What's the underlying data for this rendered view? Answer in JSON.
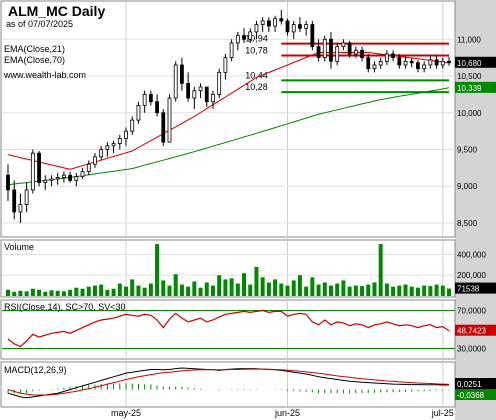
{
  "chart_data": {
    "type": "candlestick",
    "title": "ALM_MC Daily",
    "subtitle": "as of 07/07/2025",
    "watermark": "www.wealth-lab.com",
    "x_labels": [
      "may-25",
      "jun-25",
      "jul-25"
    ],
    "x_label_bar_index": [
      19,
      45,
      70
    ],
    "price": {
      "ylim": [
        8350,
        11480
      ],
      "ticks": [
        "11,000",
        "10,500",
        "10,000",
        "9,500",
        "9,000",
        "8,500"
      ],
      "tick_values": [
        11000,
        10500,
        10000,
        9500,
        9000,
        8500
      ],
      "legend": [
        "EMA(Close,21)",
        "EMA(Close,70)"
      ],
      "candles": [
        [
          9150,
          9300,
          8800,
          8950
        ],
        [
          8950,
          9080,
          8550,
          8650
        ],
        [
          8650,
          8900,
          8500,
          8750
        ],
        [
          8750,
          9050,
          8650,
          8950
        ],
        [
          8950,
          9500,
          8900,
          9450
        ],
        [
          9450,
          9480,
          9000,
          9050
        ],
        [
          9050,
          9150,
          8950,
          9080
        ],
        [
          9080,
          9150,
          9000,
          9100
        ],
        [
          9100,
          9180,
          9020,
          9120
        ],
        [
          9120,
          9200,
          9050,
          9150
        ],
        [
          9150,
          9200,
          9050,
          9080
        ],
        [
          9080,
          9180,
          9000,
          9130
        ],
        [
          9130,
          9250,
          9100,
          9200
        ],
        [
          9200,
          9350,
          9150,
          9300
        ],
        [
          9300,
          9450,
          9250,
          9400
        ],
        [
          9400,
          9550,
          9350,
          9500
        ],
        [
          9500,
          9600,
          9400,
          9550
        ],
        [
          9550,
          9620,
          9450,
          9580
        ],
        [
          9580,
          9700,
          9500,
          9650
        ],
        [
          9650,
          9800,
          9550,
          9750
        ],
        [
          9750,
          9950,
          9700,
          9900
        ],
        [
          9900,
          10150,
          9850,
          10100
        ],
        [
          10100,
          10300,
          10000,
          10250
        ],
        [
          10250,
          10300,
          10100,
          10150
        ],
        [
          10150,
          10250,
          9950,
          10000
        ],
        [
          10000,
          10050,
          9550,
          9600
        ],
        [
          9600,
          10250,
          9600,
          10200
        ],
        [
          10200,
          10700,
          10150,
          10650
        ],
        [
          10650,
          10750,
          10300,
          10400
        ],
        [
          10400,
          10550,
          10150,
          10200
        ],
        [
          10200,
          10350,
          10050,
          10300
        ],
        [
          10300,
          10400,
          10200,
          10350
        ],
        [
          10350,
          10350,
          10080,
          10150
        ],
        [
          10150,
          10300,
          10050,
          10250
        ],
        [
          10250,
          10600,
          10200,
          10550
        ],
        [
          10550,
          10800,
          10450,
          10750
        ],
        [
          10750,
          11000,
          10700,
          10950
        ],
        [
          10950,
          11100,
          10850,
          11050
        ],
        [
          11050,
          11150,
          10950,
          11000
        ],
        [
          11000,
          11150,
          10950,
          11100
        ],
        [
          11100,
          11250,
          11000,
          11200
        ],
        [
          11200,
          11300,
          11100,
          11250
        ],
        [
          11250,
          11300,
          11100,
          11180
        ],
        [
          11180,
          11320,
          11100,
          11280
        ],
        [
          11280,
          11400,
          11200,
          11250
        ],
        [
          11250,
          11280,
          11050,
          11100
        ],
        [
          11100,
          11250,
          11000,
          11200
        ],
        [
          11200,
          11300,
          11100,
          11150
        ],
        [
          11150,
          11250,
          11050,
          11200
        ],
        [
          11200,
          11250,
          10850,
          10900
        ],
        [
          10900,
          11000,
          10700,
          10750
        ],
        [
          10750,
          11050,
          10700,
          11000
        ],
        [
          11000,
          11100,
          10600,
          10700
        ],
        [
          10700,
          10950,
          10650,
          10900
        ],
        [
          10900,
          11000,
          10850,
          10950
        ],
        [
          10950,
          10980,
          10750,
          10800
        ],
        [
          10800,
          10900,
          10750,
          10850
        ],
        [
          10850,
          10900,
          10700,
          10750
        ],
        [
          10750,
          10800,
          10550,
          10600
        ],
        [
          10600,
          10700,
          10550,
          10650
        ],
        [
          10650,
          10750,
          10600,
          10700
        ],
        [
          10700,
          10850,
          10650,
          10800
        ],
        [
          10800,
          10850,
          10700,
          10750
        ],
        [
          10750,
          10800,
          10600,
          10650
        ],
        [
          10650,
          10780,
          10600,
          10700
        ],
        [
          10700,
          10750,
          10620,
          10680
        ],
        [
          10680,
          10720,
          10550,
          10600
        ],
        [
          10600,
          10700,
          10550,
          10650
        ],
        [
          10650,
          10780,
          10600,
          10720
        ],
        [
          10720,
          10780,
          10600,
          10650
        ],
        [
          10650,
          10750,
          10600,
          10700
        ],
        [
          10700,
          10760,
          10640,
          10680
        ]
      ],
      "ema21_points": [
        [
          0,
          9430
        ],
        [
          10,
          9230
        ],
        [
          20,
          9480
        ],
        [
          30,
          9950
        ],
        [
          40,
          10480
        ],
        [
          50,
          10820
        ],
        [
          58,
          10820
        ],
        [
          71,
          10680
        ]
      ],
      "ema70_points": [
        [
          0,
          9020
        ],
        [
          10,
          9120
        ],
        [
          20,
          9240
        ],
        [
          30,
          9470
        ],
        [
          40,
          9720
        ],
        [
          50,
          9980
        ],
        [
          60,
          10180
        ],
        [
          71,
          10339
        ]
      ],
      "levels": [
        {
          "label": "10,94",
          "value": 10940,
          "color": "#cc0000",
          "from_bar": 44
        },
        {
          "label": "10,78",
          "value": 10780,
          "color": "#cc0000",
          "from_bar": 44
        },
        {
          "label": "10,44",
          "value": 10440,
          "color": "#008800",
          "from_bar": 44
        },
        {
          "label": "10,28",
          "value": 10280,
          "color": "#008800",
          "from_bar": 44
        }
      ],
      "badges": [
        {
          "text": "10,680",
          "value": 10680,
          "color": "#000000"
        },
        {
          "text": "10,339",
          "value": 10339,
          "color": "#008800"
        }
      ]
    },
    "volume": {
      "label": "Volume",
      "ylim": [
        0,
        520000
      ],
      "ticks": [
        "400,000",
        "200,000"
      ],
      "tick_values": [
        400000,
        200000
      ],
      "values": [
        60000,
        40000,
        50000,
        45000,
        70000,
        60000,
        40000,
        55000,
        50000,
        45000,
        60000,
        80000,
        70000,
        90000,
        100000,
        110000,
        60000,
        70000,
        120000,
        90000,
        160000,
        100000,
        80000,
        120000,
        500000,
        150000,
        100000,
        210000,
        110000,
        90000,
        140000,
        80000,
        130000,
        100000,
        200000,
        160000,
        170000,
        120000,
        220000,
        110000,
        280000,
        180000,
        130000,
        160000,
        120000,
        100000,
        150000,
        200000,
        90000,
        180000,
        110000,
        130000,
        100000,
        120000,
        150000,
        90000,
        100000,
        95000,
        110000,
        130000,
        500000,
        120000,
        90000,
        100000,
        110000,
        90000,
        80000,
        100000,
        95000,
        110000,
        100000,
        71538
      ],
      "badge": "71538"
    },
    "rsi": {
      "label": "RSI(Close,14), SC>70, SV<30",
      "ylim": [
        20,
        80
      ],
      "ticks": [
        "70,0000",
        "30,0000"
      ],
      "tick_values": [
        70,
        30
      ],
      "values": [
        40,
        35,
        32,
        38,
        45,
        42,
        44,
        46,
        47,
        48,
        46,
        49,
        52,
        55,
        58,
        60,
        61,
        62,
        64,
        66,
        65,
        64,
        66,
        65,
        60,
        52,
        61,
        67,
        62,
        58,
        60,
        62,
        58,
        60,
        63,
        66,
        67,
        68,
        69,
        68,
        69,
        70,
        68,
        69,
        69,
        64,
        66,
        67,
        66,
        58,
        55,
        60,
        55,
        58,
        57,
        54,
        56,
        55,
        52,
        55,
        56,
        58,
        56,
        54,
        55,
        54,
        52,
        54,
        55,
        52,
        53,
        48.7423
      ],
      "badge": "48,7423"
    },
    "macd": {
      "label": "MACD(12,26,9)",
      "ylim": [
        -0.09,
        0.14
      ],
      "macd_values": [
        -0.02,
        -0.03,
        -0.04,
        -0.045,
        -0.04,
        -0.035,
        -0.03,
        -0.025,
        -0.02,
        -0.01,
        0.0,
        0.01,
        0.02,
        0.03,
        0.04,
        0.05,
        0.06,
        0.07,
        0.08,
        0.09,
        0.095,
        0.1,
        0.105,
        0.11,
        0.11,
        0.108,
        0.11,
        0.115,
        0.118,
        0.116,
        0.114,
        0.112,
        0.11,
        0.108,
        0.105,
        0.11,
        0.112,
        0.114,
        0.115,
        0.115,
        0.114,
        0.112,
        0.11,
        0.108,
        0.105,
        0.1,
        0.095,
        0.09,
        0.085,
        0.078,
        0.07,
        0.065,
        0.06,
        0.055,
        0.05,
        0.046,
        0.043,
        0.04,
        0.038,
        0.036,
        0.034,
        0.032,
        0.03,
        0.029,
        0.028,
        0.027,
        0.027,
        0.026,
        0.026,
        0.026,
        0.025,
        0.0251
      ],
      "signal_values": [
        0.0,
        -0.01,
        -0.02,
        -0.025,
        -0.03,
        -0.03,
        -0.03,
        -0.028,
        -0.025,
        -0.02,
        -0.015,
        -0.01,
        -0.002,
        0.005,
        0.013,
        0.02,
        0.03,
        0.038,
        0.046,
        0.055,
        0.062,
        0.07,
        0.076,
        0.082,
        0.088,
        0.092,
        0.095,
        0.099,
        0.102,
        0.105,
        0.107,
        0.108,
        0.109,
        0.109,
        0.109,
        0.109,
        0.11,
        0.11,
        0.111,
        0.112,
        0.112,
        0.112,
        0.111,
        0.11,
        0.108,
        0.106,
        0.103,
        0.1,
        0.097,
        0.093,
        0.089,
        0.085,
        0.08,
        0.075,
        0.071,
        0.067,
        0.063,
        0.059,
        0.056,
        0.053,
        0.05,
        0.047,
        0.045,
        0.042,
        0.04,
        0.038,
        0.036,
        0.035,
        0.033,
        0.031,
        0.03,
        0.029
      ],
      "badges": [
        {
          "text": "0,0251",
          "color": "#000000"
        },
        {
          "text": "-0,0368",
          "color": "#008800"
        }
      ]
    }
  }
}
